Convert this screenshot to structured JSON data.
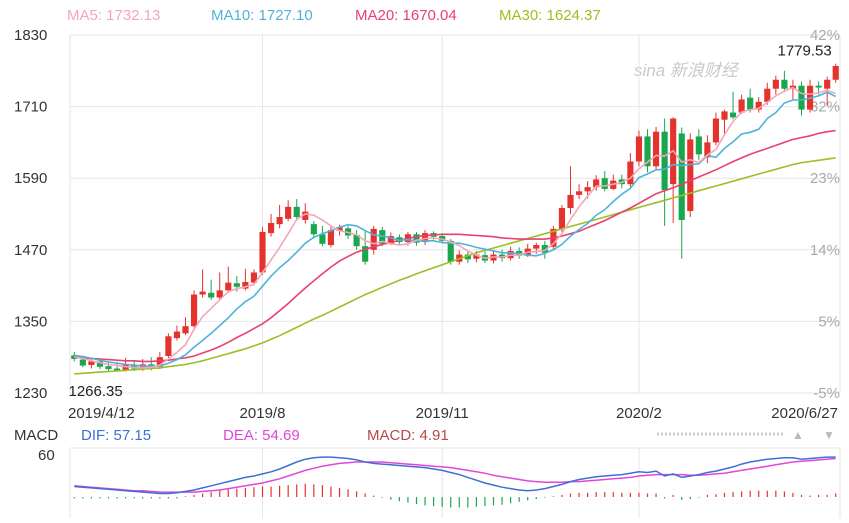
{
  "watermark": "sina 新浪财经",
  "colors": {
    "up": "#e5322d",
    "down": "#1aa64f",
    "ma5": "#f4a7b9",
    "ma10": "#4fb3d9",
    "ma20": "#e8416f",
    "ma30": "#9cbf26",
    "dif": "#3d6fd8",
    "dea": "#e247d6",
    "macd_label": "#b84a4a",
    "grid": "#e6e6e6",
    "axis_text": "#333333",
    "pct_text": "#aaaaaa"
  },
  "legend": {
    "ma5": "MA5: 1732.13",
    "ma10": "MA10: 1727.10",
    "ma20": "MA20: 1670.04",
    "ma30": "MA30: 1624.37"
  },
  "macd_legend": {
    "title": "MACD",
    "dif": "DIF: 57.15",
    "dea": "DEA: 54.69",
    "macd": "MACD: 4.91"
  },
  "chart_data": [
    {
      "type": "candlestick",
      "title": "",
      "ylim": [
        1230,
        1830
      ],
      "y_ticks": [
        "1830",
        "1710",
        "1590",
        "1470",
        "1350",
        "1230"
      ],
      "pct_ticks": [
        "42%",
        "32%",
        "23%",
        "14%",
        "5%",
        "-5%"
      ],
      "x_ticks": [
        "2019/4/12",
        "2019/8",
        "2019/11",
        "2020/2",
        "2020/6/27"
      ],
      "x_tick_index": [
        0,
        22,
        43,
        66,
        94
      ],
      "annotations": {
        "high": "1779.53",
        "low": "1266.35"
      },
      "candles": [
        [
          1293,
          1287,
          1299,
          1283
        ],
        [
          1286,
          1276,
          1290,
          1273
        ],
        [
          1277,
          1283,
          1288,
          1271
        ],
        [
          1283,
          1274,
          1287,
          1270
        ],
        [
          1275,
          1270,
          1281,
          1265
        ],
        [
          1271,
          1268,
          1282,
          1266
        ],
        [
          1268,
          1278,
          1289,
          1266
        ],
        [
          1277,
          1271,
          1284,
          1267
        ],
        [
          1271,
          1278,
          1287,
          1267
        ],
        [
          1278,
          1272,
          1290,
          1268
        ],
        [
          1274,
          1290,
          1299,
          1270
        ],
        [
          1292,
          1325,
          1330,
          1289
        ],
        [
          1322,
          1333,
          1343,
          1318
        ],
        [
          1330,
          1342,
          1357,
          1327
        ],
        [
          1342,
          1395,
          1402,
          1340
        ],
        [
          1395,
          1400,
          1437,
          1390
        ],
        [
          1398,
          1390,
          1420,
          1386
        ],
        [
          1390,
          1402,
          1432,
          1387
        ],
        [
          1402,
          1415,
          1442,
          1398
        ],
        [
          1414,
          1408,
          1426,
          1400
        ],
        [
          1405,
          1416,
          1438,
          1402
        ],
        [
          1415,
          1432,
          1437,
          1410
        ],
        [
          1432,
          1500,
          1508,
          1428
        ],
        [
          1498,
          1515,
          1530,
          1492
        ],
        [
          1513,
          1525,
          1545,
          1506
        ],
        [
          1522,
          1542,
          1553,
          1518
        ],
        [
          1542,
          1525,
          1555,
          1519
        ],
        [
          1520,
          1534,
          1548,
          1514
        ],
        [
          1513,
          1496,
          1518,
          1489
        ],
        [
          1496,
          1480,
          1510,
          1476
        ],
        [
          1478,
          1503,
          1510,
          1474
        ],
        [
          1502,
          1508,
          1512,
          1494
        ],
        [
          1506,
          1494,
          1510,
          1488
        ],
        [
          1495,
          1476,
          1503,
          1470
        ],
        [
          1476,
          1450,
          1502,
          1445
        ],
        [
          1470,
          1505,
          1510,
          1462
        ],
        [
          1503,
          1480,
          1508,
          1476
        ],
        [
          1480,
          1493,
          1499,
          1478
        ],
        [
          1491,
          1483,
          1496,
          1478
        ],
        [
          1483,
          1496,
          1500,
          1477
        ],
        [
          1496,
          1482,
          1500,
          1477
        ],
        [
          1483,
          1498,
          1503,
          1478
        ],
        [
          1498,
          1492,
          1501,
          1487
        ],
        [
          1493,
          1485,
          1498,
          1482
        ],
        [
          1485,
          1450,
          1488,
          1445
        ],
        [
          1450,
          1462,
          1469,
          1445
        ],
        [
          1462,
          1454,
          1468,
          1448
        ],
        [
          1455,
          1462,
          1468,
          1449
        ],
        [
          1461,
          1452,
          1467,
          1448
        ],
        [
          1452,
          1462,
          1470,
          1447
        ],
        [
          1462,
          1456,
          1470,
          1450
        ],
        [
          1456,
          1468,
          1475,
          1452
        ],
        [
          1468,
          1460,
          1474,
          1455
        ],
        [
          1460,
          1472,
          1480,
          1458
        ],
        [
          1472,
          1478,
          1482,
          1463
        ],
        [
          1478,
          1465,
          1485,
          1455
        ],
        [
          1475,
          1505,
          1510,
          1470
        ],
        [
          1505,
          1540,
          1545,
          1500
        ],
        [
          1540,
          1562,
          1610,
          1530
        ],
        [
          1562,
          1568,
          1580,
          1555
        ],
        [
          1568,
          1575,
          1585,
          1556
        ],
        [
          1575,
          1588,
          1595,
          1569
        ],
        [
          1590,
          1572,
          1602,
          1568
        ],
        [
          1572,
          1586,
          1596,
          1570
        ],
        [
          1588,
          1580,
          1596,
          1573
        ],
        [
          1580,
          1618,
          1632,
          1575
        ],
        [
          1618,
          1660,
          1670,
          1610
        ],
        [
          1660,
          1610,
          1672,
          1600
        ],
        [
          1610,
          1668,
          1676,
          1605
        ],
        [
          1668,
          1570,
          1690,
          1510
        ],
        [
          1580,
          1690,
          1692,
          1515
        ],
        [
          1665,
          1520,
          1675,
          1455
        ],
        [
          1535,
          1655,
          1665,
          1525
        ],
        [
          1660,
          1630,
          1672,
          1620
        ],
        [
          1625,
          1650,
          1662,
          1615
        ],
        [
          1650,
          1690,
          1700,
          1645
        ],
        [
          1688,
          1702,
          1705,
          1662
        ],
        [
          1700,
          1692,
          1735,
          1689
        ],
        [
          1700,
          1722,
          1730,
          1698
        ],
        [
          1725,
          1705,
          1740,
          1700
        ],
        [
          1705,
          1718,
          1726,
          1700
        ],
        [
          1718,
          1740,
          1750,
          1713
        ],
        [
          1740,
          1755,
          1762,
          1730
        ],
        [
          1755,
          1740,
          1770,
          1735
        ],
        [
          1740,
          1745,
          1755,
          1722
        ],
        [
          1745,
          1705,
          1752,
          1695
        ],
        [
          1705,
          1745,
          1755,
          1700
        ],
        [
          1745,
          1742,
          1752,
          1730
        ],
        [
          1740,
          1755,
          1760,
          1712
        ],
        [
          1755,
          1778,
          1782,
          1750
        ]
      ],
      "ma5": [
        1290,
        1288,
        1284,
        1281,
        1278,
        1276,
        1274,
        1273,
        1272,
        1273,
        1277,
        1287,
        1298,
        1311,
        1337,
        1358,
        1372,
        1386,
        1400,
        1405,
        1408,
        1412,
        1432,
        1453,
        1474,
        1497,
        1521,
        1530,
        1528,
        1520,
        1510,
        1502,
        1499,
        1495,
        1485,
        1480,
        1484,
        1480,
        1478,
        1480,
        1486,
        1489,
        1490,
        1488,
        1483,
        1477,
        1468,
        1461,
        1456,
        1458,
        1458,
        1461,
        1461,
        1466,
        1467,
        1469,
        1480,
        1497,
        1521,
        1542,
        1560,
        1577,
        1577,
        1580,
        1583,
        1590,
        1606,
        1617,
        1628,
        1627,
        1636,
        1617,
        1621,
        1616,
        1629,
        1638,
        1663,
        1685,
        1701,
        1705,
        1707,
        1717,
        1728,
        1736,
        1742,
        1732,
        1731,
        1733,
        1737,
        1732
      ],
      "ma10": [
        1293,
        1291,
        1288,
        1285,
        1282,
        1280,
        1278,
        1277,
        1275,
        1275,
        1275,
        1280,
        1286,
        1294,
        1307,
        1318,
        1330,
        1343,
        1356,
        1371,
        1383,
        1392,
        1409,
        1426,
        1440,
        1452,
        1466,
        1481,
        1491,
        1497,
        1502,
        1508,
        1512,
        1510,
        1502,
        1495,
        1493,
        1490,
        1486,
        1487,
        1485,
        1485,
        1485,
        1482,
        1481,
        1481,
        1478,
        1474,
        1471,
        1468,
        1465,
        1465,
        1464,
        1461,
        1460,
        1464,
        1470,
        1479,
        1493,
        1504,
        1514,
        1528,
        1537,
        1551,
        1563,
        1573,
        1591,
        1597,
        1604,
        1605,
        1613,
        1611,
        1613,
        1614,
        1628,
        1625,
        1640,
        1651,
        1664,
        1667,
        1672,
        1690,
        1700,
        1716,
        1721,
        1721,
        1724,
        1728,
        1734,
        1727
      ],
      "ma20": [
        1290,
        1289,
        1288,
        1287,
        1286,
        1285,
        1284,
        1284,
        1283,
        1283,
        1284,
        1285,
        1287,
        1289,
        1292,
        1297,
        1302,
        1308,
        1315,
        1323,
        1330,
        1338,
        1346,
        1356,
        1368,
        1380,
        1393,
        1406,
        1418,
        1430,
        1441,
        1451,
        1459,
        1466,
        1471,
        1475,
        1479,
        1482,
        1486,
        1489,
        1492,
        1494,
        1495,
        1496,
        1496,
        1496,
        1495,
        1494,
        1493,
        1492,
        1490,
        1489,
        1488,
        1488,
        1488,
        1488,
        1490,
        1493,
        1497,
        1501,
        1507,
        1513,
        1519,
        1526,
        1533,
        1540,
        1548,
        1556,
        1564,
        1569,
        1574,
        1580,
        1586,
        1592,
        1598,
        1604,
        1611,
        1618,
        1624,
        1630,
        1635,
        1640,
        1645,
        1650,
        1655,
        1658,
        1661,
        1665,
        1668,
        1670
      ],
      "ma30": [
        1262,
        1263,
        1264,
        1265,
        1266,
        1267,
        1268,
        1269,
        1270,
        1271,
        1272,
        1274,
        1276,
        1278,
        1281,
        1284,
        1288,
        1292,
        1296,
        1300,
        1304,
        1309,
        1314,
        1320,
        1326,
        1333,
        1340,
        1347,
        1354,
        1360,
        1367,
        1374,
        1381,
        1388,
        1395,
        1401,
        1407,
        1413,
        1419,
        1424,
        1430,
        1435,
        1440,
        1445,
        1450,
        1455,
        1460,
        1465,
        1469,
        1473,
        1477,
        1481,
        1485,
        1489,
        1493,
        1497,
        1501,
        1505,
        1509,
        1513,
        1517,
        1521,
        1525,
        1529,
        1533,
        1537,
        1541,
        1545,
        1549,
        1553,
        1557,
        1561,
        1565,
        1569,
        1573,
        1577,
        1581,
        1585,
        1589,
        1593,
        1597,
        1601,
        1605,
        1609,
        1613,
        1616,
        1618,
        1620,
        1622,
        1624
      ]
    },
    {
      "type": "macd",
      "y_ticks": [
        "60"
      ],
      "ylim": [
        -30,
        70
      ],
      "dif": [
        15,
        14,
        13,
        12,
        11,
        10,
        9,
        8,
        7,
        6,
        5,
        5,
        6,
        8,
        10,
        13,
        16,
        19,
        22,
        25,
        28,
        30,
        33,
        36,
        40,
        45,
        50,
        54,
        56,
        57,
        57,
        56,
        55,
        53,
        50,
        48,
        47,
        46,
        45,
        44,
        43,
        42,
        40,
        38,
        35,
        32,
        28,
        24,
        20,
        17,
        14,
        12,
        10,
        9,
        10,
        12,
        15,
        18,
        22,
        25,
        27,
        29,
        30,
        31,
        32,
        34,
        36,
        35,
        37,
        30,
        33,
        28,
        30,
        32,
        35,
        37,
        40,
        43,
        47,
        50,
        52,
        54,
        55,
        56,
        56,
        54,
        55,
        56,
        57,
        57
      ],
      "dea": [
        16,
        15,
        14,
        13,
        12,
        11,
        10,
        9,
        9,
        8,
        7,
        7,
        7,
        7,
        7,
        8,
        9,
        10,
        12,
        14,
        16,
        18,
        20,
        23,
        26,
        30,
        34,
        38,
        41,
        44,
        46,
        48,
        49,
        50,
        50,
        50,
        50,
        49,
        48,
        47,
        46,
        45,
        44,
        43,
        42,
        40,
        38,
        36,
        34,
        31,
        29,
        27,
        25,
        23,
        22,
        21,
        21,
        21,
        22,
        22,
        23,
        24,
        25,
        26,
        27,
        28,
        30,
        31,
        32,
        32,
        32,
        32,
        31,
        31,
        32,
        33,
        34,
        36,
        38,
        40,
        42,
        44,
        46,
        48,
        50,
        51,
        52,
        53,
        54,
        55
      ],
      "macd": [
        -2,
        -2,
        -2,
        -2,
        -2,
        -2,
        -2,
        -2,
        -2,
        -2,
        -2,
        -2,
        -2,
        1,
        3,
        5,
        7,
        9,
        11,
        12,
        13,
        14,
        15,
        15,
        16,
        17,
        18,
        19,
        18,
        17,
        15,
        13,
        11,
        8,
        5,
        2,
        -1,
        -4,
        -6,
        -8,
        -10,
        -12,
        -13,
        -14,
        -15,
        -15,
        -15,
        -14,
        -13,
        -12,
        -11,
        -9,
        -7,
        -5,
        -3,
        -1,
        1,
        3,
        5,
        6,
        6,
        7,
        7,
        7,
        6,
        6,
        6,
        5,
        5,
        -2,
        3,
        -4,
        -3,
        -1,
        3,
        4,
        6,
        7,
        8,
        9,
        9,
        9,
        9,
        8,
        6,
        3,
        2,
        3,
        3,
        5
      ]
    }
  ]
}
